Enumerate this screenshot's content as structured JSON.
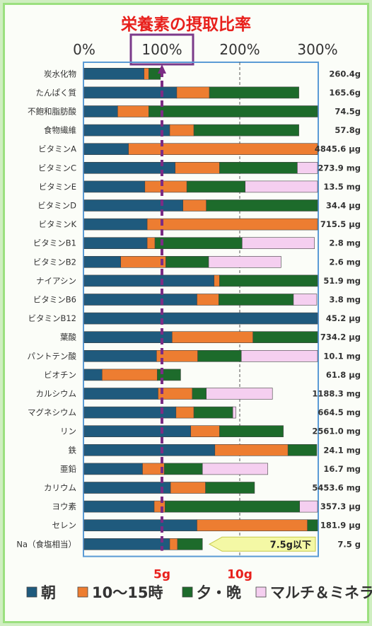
{
  "chart_data": {
    "type": "bar",
    "stacked": true,
    "orientation": "horizontal",
    "title": "栄養素の摂取比率",
    "x_ticks": [
      "0%",
      "100%",
      "200%",
      "300%"
    ],
    "xlim": [
      0,
      300
    ],
    "highlight_tick": "100%",
    "bottom_ticks": [
      {
        "value": 100,
        "label": "5g"
      },
      {
        "value": 200,
        "label": "10g"
      }
    ],
    "categories": [
      "炭水化物",
      "たんぱく質",
      "不飽和脂肪酸",
      "食物繊維",
      "ビタミンA",
      "ビタミンC",
      "ビタミンE",
      "ビタミンD",
      "ビタミンK",
      "ビタミンB1",
      "ビタミンB2",
      "ナイアシン",
      "ビタミンB6",
      "ビタミンB12",
      "葉酸",
      "パントテン酸",
      "ビオチン",
      "カルシウム",
      "マグネシウム",
      "リン",
      "鉄",
      "亜鉛",
      "カリウム",
      "ヨウ素",
      "セレン",
      "Na（食塩相当）"
    ],
    "totals": [
      "260.4g",
      "165.6g",
      "74.5g",
      "57.8g",
      "4845.6 μg",
      "273.9 mg",
      "13.5 mg",
      "34.4 μg",
      "715.5 μg",
      "2.8 mg",
      "2.6 mg",
      "51.9 mg",
      "3.8 mg",
      "45.2 μg",
      "734.2 μg",
      "10.1 mg",
      "61.8 μg",
      "1188.3 mg",
      "664.5 mg",
      "2561.0 mg",
      "24.1 mg",
      "16.7 mg",
      "5453.6 mg",
      "357.3 μg",
      "181.9 μg",
      "7.5 g"
    ],
    "series": [
      {
        "name": "朝",
        "color": "#1f5a7d",
        "values": [
          77,
          119,
          43,
          110,
          57,
          117,
          78,
          127,
          81,
          81,
          47,
          167,
          145,
          300,
          113,
          93,
          23,
          95,
          118,
          137,
          168,
          75,
          111,
          90,
          145,
          110
        ]
      },
      {
        "name": "10〜15時",
        "color": "#ed7d31",
        "values": [
          6,
          42,
          40,
          31,
          243,
          57,
          54,
          30,
          219,
          10,
          58,
          7,
          28,
          0,
          104,
          53,
          71,
          44,
          23,
          37,
          94,
          28,
          45,
          14,
          142,
          10
        ]
      },
      {
        "name": "夕・晩",
        "color": "#1d6b2b",
        "values": [
          15,
          115,
          217,
          135,
          0,
          100,
          75,
          143,
          0,
          112,
          55,
          126,
          96,
          0,
          84,
          56,
          30,
          18,
          50,
          82,
          37,
          49,
          63,
          173,
          13,
          32
        ]
      },
      {
        "name": "マルチ＆ミネラル",
        "color": "#f5cff0",
        "values": [
          0,
          0,
          0,
          0,
          0,
          27,
          94,
          0,
          0,
          93,
          93,
          0,
          30,
          0,
          0,
          98,
          0,
          85,
          4,
          0,
          0,
          84,
          0,
          26,
          0,
          0
        ]
      }
    ],
    "annotation": {
      "text": "7.5g以下",
      "row": "Na（食塩相当）"
    },
    "grid": true,
    "legend": "bottom"
  },
  "colors": {
    "title": "#e8201c",
    "highlight_box": "#7b3a8a",
    "marker_line": "#7b2c84",
    "annotation_fill": "#f4f8a5"
  }
}
